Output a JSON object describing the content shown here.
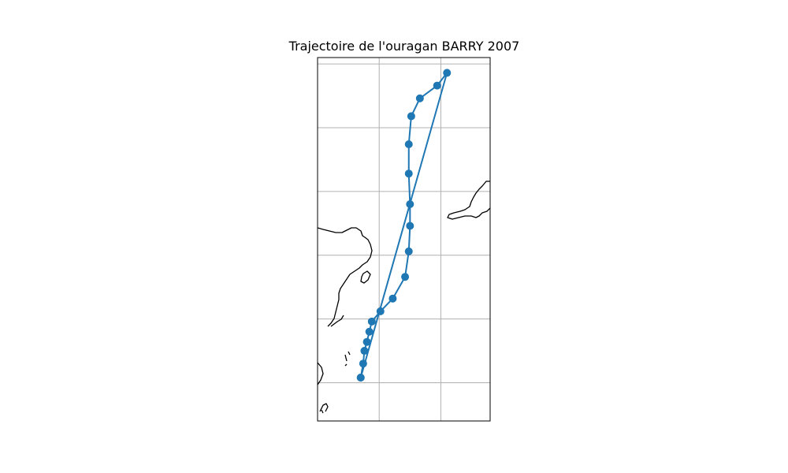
{
  "title": "Trajectoire de l'ouragan BARRY 2007",
  "colors": {
    "track": "#1f77b4",
    "grid": "#b0b0b0",
    "coastline": "#000000",
    "frame": "#000000"
  },
  "chart_data": {
    "type": "line",
    "title": "Trajectoire de l'ouragan BARRY 2007",
    "xlabel": "",
    "ylabel": "",
    "grid": true,
    "legend": "none",
    "marker": "circle",
    "xlim": [
      -90.0,
      -76.0
    ],
    "ylim": [
      17.0,
      45.5
    ],
    "series": [
      {
        "x": [
          -86.5,
          -86.3,
          -86.2,
          -86.0,
          -85.8,
          -85.6,
          -84.9,
          -83.9,
          -82.9,
          -82.6,
          -82.5,
          -82.5,
          -82.6,
          -82.6,
          -82.4,
          -81.7,
          -80.3,
          -79.5,
          -86.5
        ],
        "y": [
          20.4,
          21.5,
          22.5,
          23.2,
          24.0,
          24.8,
          25.6,
          26.6,
          28.3,
          30.3,
          32.3,
          34.0,
          36.4,
          38.7,
          40.9,
          42.3,
          43.3,
          44.3,
          20.4
        ]
      }
    ]
  }
}
